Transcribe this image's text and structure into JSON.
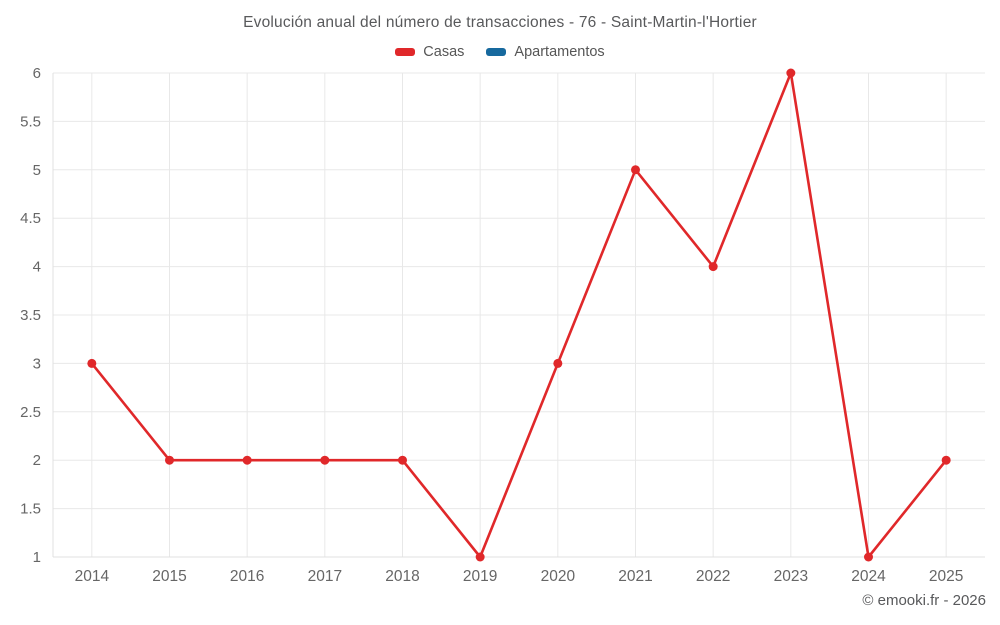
{
  "title": "Evolución anual del número de transacciones - 76 - Saint-Martin-l'Hortier",
  "legend": [
    {
      "label": "Casas",
      "color": "#e0282a"
    },
    {
      "label": "Apartamentos",
      "color": "#17699e"
    }
  ],
  "footer": {
    "credit": "© emooki.fr - 2026"
  },
  "colors": {
    "grid": "#e8e8e8",
    "axis_border": "#e0e0e0",
    "tick_label": "#666666"
  },
  "chart_data": {
    "type": "line",
    "categories": [
      "2014",
      "2015",
      "2016",
      "2017",
      "2018",
      "2019",
      "2020",
      "2021",
      "2022",
      "2023",
      "2024",
      "2025"
    ],
    "series": [
      {
        "name": "Casas",
        "color": "#e0282a",
        "values": [
          3,
          2,
          2,
          2,
          2,
          1,
          3,
          5,
          4,
          6,
          1,
          2
        ]
      },
      {
        "name": "Apartamentos",
        "color": "#17699e",
        "values": []
      }
    ],
    "title": "Evolución anual del número de transacciones - 76 - Saint-Martin-l'Hortier",
    "xlabel": "",
    "ylabel": "",
    "ylim": [
      1,
      6
    ],
    "ytick_step": 0.5,
    "grid": true,
    "legend_position": "top"
  }
}
